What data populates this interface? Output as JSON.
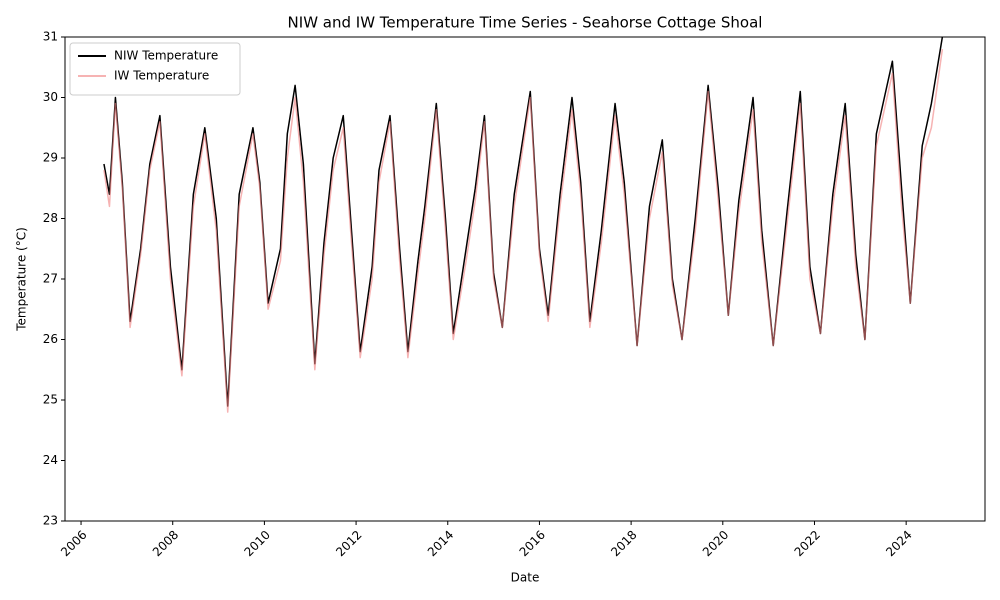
{
  "chart_data": {
    "type": "line",
    "title": "NIW and IW Temperature Time Series - Seahorse Cottage Shoal",
    "xlabel": "Date",
    "ylabel": "Temperature (°C)",
    "x": [
      2006.5,
      2006.62,
      2006.75,
      2006.9,
      2007.07,
      2007.3,
      2007.5,
      2007.72,
      2007.95,
      2008.2,
      2008.45,
      2008.7,
      2008.95,
      2009.2,
      2009.45,
      2009.75,
      2009.9,
      2010.08,
      2010.35,
      2010.5,
      2010.67,
      2010.85,
      2011.1,
      2011.3,
      2011.5,
      2011.72,
      2011.9,
      2012.09,
      2012.35,
      2012.5,
      2012.74,
      2012.95,
      2013.13,
      2013.35,
      2013.5,
      2013.75,
      2013.95,
      2014.12,
      2014.4,
      2014.6,
      2014.8,
      2015.0,
      2015.19,
      2015.45,
      2015.8,
      2016.0,
      2016.19,
      2016.45,
      2016.71,
      2016.9,
      2017.1,
      2017.35,
      2017.65,
      2017.85,
      2018.13,
      2018.4,
      2018.68,
      2018.9,
      2019.11,
      2019.4,
      2019.68,
      2019.9,
      2020.12,
      2020.35,
      2020.66,
      2020.85,
      2021.1,
      2021.4,
      2021.69,
      2021.9,
      2022.13,
      2022.4,
      2022.67,
      2022.9,
      2023.1,
      2023.35,
      2023.7,
      2023.9,
      2024.09,
      2024.35,
      2024.55,
      2024.79
    ],
    "series": [
      {
        "name": "NIW Temperature",
        "color": "#000000",
        "values": [
          28.9,
          28.4,
          30.0,
          28.6,
          26.3,
          27.5,
          28.9,
          29.7,
          27.2,
          25.5,
          28.4,
          29.5,
          28.0,
          24.9,
          28.4,
          29.5,
          28.6,
          26.6,
          27.5,
          29.4,
          30.2,
          28.9,
          25.6,
          27.6,
          29.0,
          29.7,
          27.8,
          25.8,
          27.2,
          28.8,
          29.7,
          27.5,
          25.8,
          27.3,
          28.2,
          29.9,
          28.0,
          26.1,
          27.5,
          28.5,
          29.7,
          27.1,
          26.2,
          28.4,
          30.1,
          27.5,
          26.4,
          28.4,
          30.0,
          28.6,
          26.3,
          27.8,
          29.9,
          28.6,
          25.9,
          28.2,
          29.3,
          27.0,
          26.0,
          28.0,
          30.2,
          28.5,
          26.4,
          28.3,
          30.0,
          27.8,
          25.9,
          28.1,
          30.1,
          27.2,
          26.1,
          28.4,
          29.9,
          27.4,
          26.0,
          29.4,
          30.6,
          28.5,
          26.6,
          29.2,
          29.9,
          31.0
        ]
      },
      {
        "name": "IW Temperature",
        "color": "#f08080",
        "values": [
          28.8,
          28.2,
          29.9,
          28.5,
          26.2,
          27.4,
          28.8,
          29.6,
          27.0,
          25.4,
          28.2,
          29.4,
          27.8,
          24.8,
          28.2,
          29.4,
          28.5,
          26.5,
          27.3,
          29.0,
          30.0,
          28.6,
          25.5,
          27.4,
          28.8,
          29.5,
          27.6,
          25.7,
          27.0,
          28.6,
          29.6,
          27.3,
          25.7,
          27.1,
          28.0,
          29.8,
          27.8,
          26.0,
          27.3,
          28.3,
          29.6,
          27.0,
          26.2,
          28.2,
          30.0,
          27.4,
          26.3,
          28.2,
          29.8,
          28.4,
          26.2,
          27.6,
          29.7,
          28.4,
          25.9,
          28.0,
          29.1,
          26.9,
          26.0,
          27.8,
          30.1,
          28.3,
          26.4,
          28.1,
          29.8,
          27.6,
          25.9,
          27.9,
          29.9,
          27.0,
          26.1,
          28.2,
          29.7,
          27.2,
          26.0,
          29.2,
          30.4,
          28.2,
          26.6,
          29.0,
          29.5,
          30.8
        ]
      }
    ],
    "xlim": [
      2005.65,
      2025.72
    ],
    "xticks": [
      2006,
      2008,
      2010,
      2012,
      2014,
      2016,
      2018,
      2020,
      2022,
      2024
    ],
    "ylim": [
      23,
      31
    ],
    "yticks": [
      23,
      24,
      25,
      26,
      27,
      28,
      29,
      30,
      31
    ],
    "grid": false,
    "legend": "upper left"
  }
}
